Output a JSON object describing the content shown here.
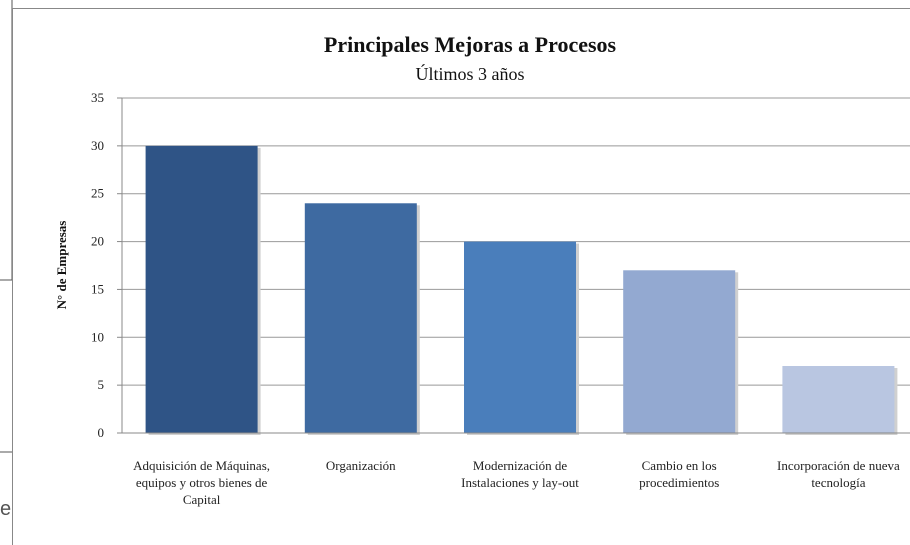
{
  "background_text": "e",
  "chart_data": {
    "type": "bar",
    "title": "Principales Mejoras a Procesos",
    "subtitle": "Últimos 3 años",
    "y_label": "N° de Empresas",
    "categories": [
      "Adquisición de Máquinas, equipos y otros bienes de Capital",
      "Organización",
      "Modernización de Instalaciones y lay-out",
      "Cambio en los procedimientos",
      "Incorporación de nueva tecnología"
    ],
    "values": [
      30,
      24,
      20,
      17,
      7
    ],
    "colors": [
      "#2f5486",
      "#3e6aa1",
      "#4a7ebb",
      "#93a9d1",
      "#b9c6e1"
    ],
    "ylim": [
      0,
      35
    ],
    "yticks": [
      0,
      5,
      10,
      15,
      20,
      25,
      30,
      35
    ],
    "grid": true
  }
}
